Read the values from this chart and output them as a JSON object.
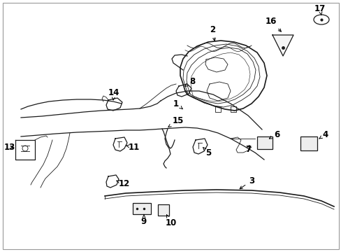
{
  "background_color": "#ffffff",
  "line_color": "#1a1a1a",
  "figsize": [
    4.89,
    3.6
  ],
  "dpi": 100,
  "border": true,
  "lw_thin": 0.6,
  "lw_med": 0.9,
  "lw_thick": 1.2
}
